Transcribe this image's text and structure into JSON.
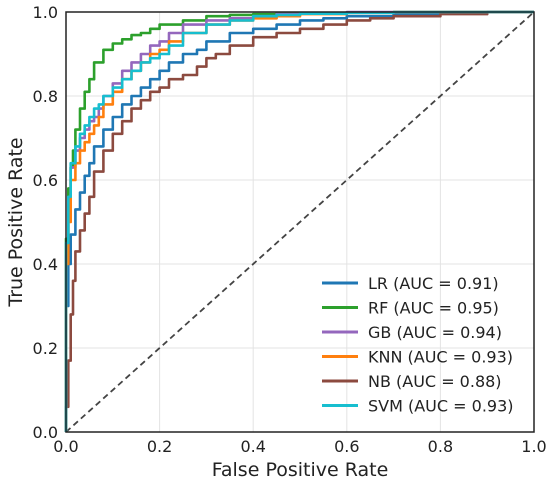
{
  "chart_data": {
    "type": "line",
    "title": "",
    "xlabel": "False Positive Rate",
    "ylabel": "True Positive Rate",
    "xlim": [
      0,
      1
    ],
    "ylim": [
      0,
      1
    ],
    "x_ticks": [
      "0.0",
      "0.2",
      "0.4",
      "0.6",
      "0.8",
      "1.0"
    ],
    "y_ticks": [
      "0.0",
      "0.2",
      "0.4",
      "0.6",
      "0.8",
      "1.0"
    ],
    "grid": true,
    "legend_position": "lower-right",
    "reference_line": {
      "style": "dashed",
      "color": "#444444",
      "x": [
        0,
        1
      ],
      "y": [
        0,
        1
      ]
    },
    "series": [
      {
        "name": "LR (AUC = 0.91)",
        "color": "#1f77b4",
        "x": [
          0,
          0.005,
          0.01,
          0.02,
          0.03,
          0.04,
          0.05,
          0.06,
          0.08,
          0.1,
          0.12,
          0.14,
          0.16,
          0.18,
          0.2,
          0.22,
          0.25,
          0.28,
          0.3,
          0.35,
          0.4,
          0.45,
          0.5,
          0.55,
          0.6,
          0.7,
          0.8,
          0.9,
          1.0
        ],
        "y": [
          0,
          0.3,
          0.4,
          0.47,
          0.53,
          0.57,
          0.61,
          0.64,
          0.68,
          0.72,
          0.75,
          0.78,
          0.8,
          0.82,
          0.84,
          0.86,
          0.88,
          0.9,
          0.91,
          0.93,
          0.95,
          0.96,
          0.97,
          0.98,
          0.985,
          0.99,
          0.995,
          0.998,
          1.0
        ]
      },
      {
        "name": "RF (AUC = 0.95)",
        "color": "#2ca02c",
        "x": [
          0,
          0.005,
          0.01,
          0.015,
          0.02,
          0.03,
          0.04,
          0.05,
          0.06,
          0.08,
          0.1,
          0.12,
          0.14,
          0.16,
          0.18,
          0.2,
          0.25,
          0.3,
          0.35,
          0.4,
          0.45,
          0.5,
          0.6,
          0.7,
          0.8,
          0.9,
          1.0
        ],
        "y": [
          0,
          0.46,
          0.58,
          0.63,
          0.67,
          0.72,
          0.77,
          0.81,
          0.84,
          0.88,
          0.91,
          0.925,
          0.935,
          0.945,
          0.95,
          0.96,
          0.97,
          0.98,
          0.99,
          0.993,
          0.995,
          0.997,
          0.998,
          0.999,
          1.0,
          1.0,
          1.0
        ]
      },
      {
        "name": "GB (AUC = 0.94)",
        "color": "#9467bd",
        "x": [
          0,
          0.005,
          0.01,
          0.02,
          0.03,
          0.04,
          0.05,
          0.06,
          0.07,
          0.08,
          0.1,
          0.12,
          0.14,
          0.16,
          0.18,
          0.2,
          0.22,
          0.25,
          0.3,
          0.35,
          0.4,
          0.45,
          0.5,
          0.6,
          0.7,
          0.8,
          0.9,
          1.0
        ],
        "y": [
          0,
          0.42,
          0.55,
          0.63,
          0.67,
          0.7,
          0.72,
          0.74,
          0.75,
          0.77,
          0.8,
          0.83,
          0.86,
          0.88,
          0.9,
          0.92,
          0.93,
          0.95,
          0.97,
          0.98,
          0.985,
          0.99,
          0.995,
          0.998,
          1.0,
          1.0,
          1.0,
          1.0
        ]
      },
      {
        "name": "KNN (AUC = 0.93)",
        "color": "#ff7f0e",
        "x": [
          0,
          0.005,
          0.01,
          0.02,
          0.03,
          0.04,
          0.05,
          0.06,
          0.07,
          0.08,
          0.1,
          0.12,
          0.14,
          0.16,
          0.18,
          0.2,
          0.22,
          0.25,
          0.3,
          0.35,
          0.4,
          0.45,
          0.5,
          0.6,
          0.7,
          0.8,
          0.9,
          1.0
        ],
        "y": [
          0,
          0.4,
          0.5,
          0.6,
          0.64,
          0.67,
          0.69,
          0.71,
          0.73,
          0.75,
          0.78,
          0.81,
          0.84,
          0.86,
          0.88,
          0.9,
          0.91,
          0.93,
          0.95,
          0.97,
          0.98,
          0.985,
          0.99,
          0.995,
          0.998,
          1.0,
          1.0,
          1.0
        ]
      },
      {
        "name": "NB (AUC = 0.88)",
        "color": "#8c4a3f",
        "x": [
          0,
          0.005,
          0.01,
          0.015,
          0.02,
          0.03,
          0.04,
          0.05,
          0.06,
          0.08,
          0.1,
          0.12,
          0.14,
          0.16,
          0.18,
          0.2,
          0.22,
          0.25,
          0.28,
          0.3,
          0.32,
          0.35,
          0.4,
          0.45,
          0.5,
          0.55,
          0.6,
          0.65,
          0.7,
          0.8,
          0.9,
          1.0
        ],
        "y": [
          0,
          0.06,
          0.17,
          0.28,
          0.36,
          0.43,
          0.48,
          0.52,
          0.56,
          0.62,
          0.67,
          0.71,
          0.74,
          0.77,
          0.79,
          0.81,
          0.82,
          0.84,
          0.85,
          0.87,
          0.89,
          0.9,
          0.92,
          0.94,
          0.95,
          0.96,
          0.97,
          0.98,
          0.985,
          0.99,
          0.995,
          1.0
        ]
      },
      {
        "name": "SVM (AUC = 0.93)",
        "color": "#17becf",
        "x": [
          0,
          0.005,
          0.01,
          0.02,
          0.03,
          0.04,
          0.05,
          0.06,
          0.07,
          0.08,
          0.1,
          0.12,
          0.14,
          0.16,
          0.18,
          0.2,
          0.22,
          0.25,
          0.3,
          0.35,
          0.4,
          0.45,
          0.5,
          0.6,
          0.7,
          0.8,
          0.9,
          1.0
        ],
        "y": [
          0,
          0.45,
          0.56,
          0.64,
          0.68,
          0.71,
          0.73,
          0.75,
          0.77,
          0.78,
          0.8,
          0.82,
          0.84,
          0.86,
          0.88,
          0.89,
          0.9,
          0.92,
          0.95,
          0.97,
          0.98,
          0.99,
          0.993,
          0.996,
          0.998,
          1.0,
          1.0,
          1.0
        ]
      }
    ]
  }
}
